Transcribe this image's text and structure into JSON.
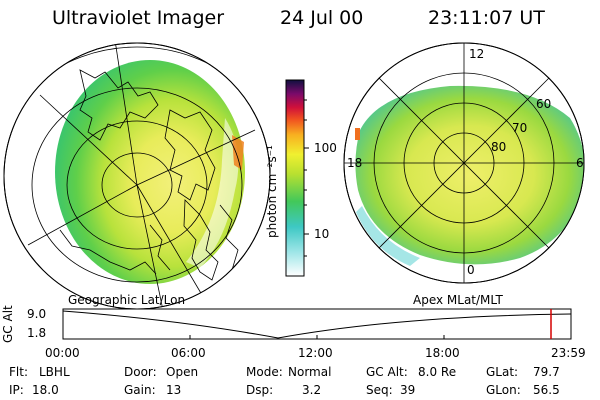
{
  "header": {
    "instrument": "Ultraviolet Imager",
    "date": "24 Jul 00",
    "time": "23:11:07 UT"
  },
  "colorbar": {
    "unit_label": "photon cm⁻²s⁻¹",
    "ticks": [
      "100",
      "10"
    ]
  },
  "polar_plot": {
    "labels": {
      "top": "12",
      "right": "6",
      "left": "18",
      "bottom": "0",
      "ring_60": "60",
      "ring_70": "70",
      "ring_80": "80"
    }
  },
  "panel_titles": {
    "left": "Geographic Lat/Lon",
    "right": "Apex MLat/MLT"
  },
  "timeline": {
    "axis_title": "GC Alt",
    "y_max": "9.0",
    "y_min": "1.8",
    "x_ticks": [
      "00:00",
      "06:00",
      "12:00",
      "18:00",
      "23:59"
    ],
    "current_marker_color": "#d40000"
  },
  "footer": {
    "row1": [
      {
        "label": "Flt:",
        "value": "LBHL"
      },
      {
        "label": "Door:",
        "value": "Open"
      },
      {
        "label": "Mode:",
        "value": "Normal"
      },
      {
        "label": "GC Alt:",
        "value": "8.0 Re"
      },
      {
        "label": "GLat:",
        "value": "79.7"
      }
    ],
    "row2": [
      {
        "label": "IP:",
        "value": "18.0"
      },
      {
        "label": "Gain:",
        "value": "13"
      },
      {
        "label": "Dsp:",
        "value": "3.2"
      },
      {
        "label": "Seq:",
        "value": "39"
      },
      {
        "label": "GLon:",
        "value": "56.5"
      }
    ]
  }
}
